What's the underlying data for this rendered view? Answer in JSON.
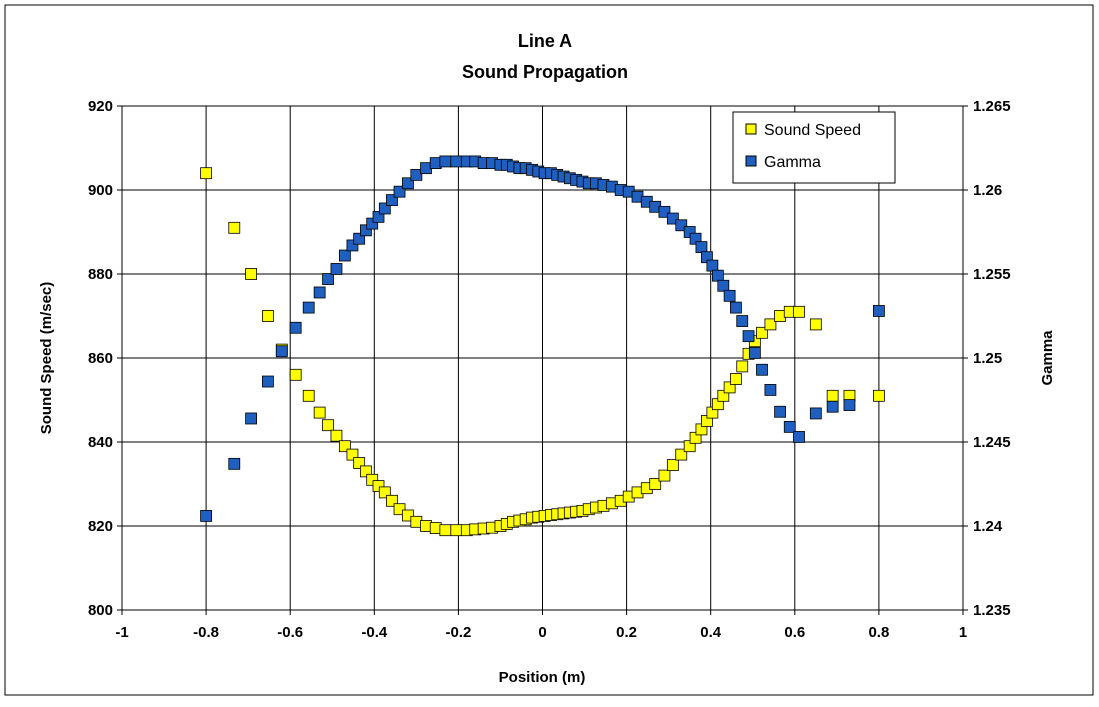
{
  "chart_data": {
    "type": "scatter",
    "title_lines": [
      "Line A",
      "Sound Propagation"
    ],
    "xlabel": "Position (m)",
    "ylabel": "Sound Speed (m/sec)",
    "y2label": "Gamma",
    "xlim": [
      -1,
      1
    ],
    "ylim": [
      800,
      920
    ],
    "y2lim": [
      1.235,
      1.265
    ],
    "x_ticks": [
      -1,
      -0.8,
      -0.6,
      -0.4,
      -0.2,
      0,
      0.2,
      0.4,
      0.6,
      0.8,
      1
    ],
    "x_tick_labels": [
      "-1",
      "-0.8",
      "-0.6",
      "-0.4",
      "-0.2",
      "0",
      "0.2",
      "0.4",
      "0.6",
      "0.8",
      "1"
    ],
    "y_ticks": [
      800,
      820,
      840,
      860,
      880,
      900,
      920
    ],
    "y_tick_labels": [
      "800",
      "820",
      "840",
      "860",
      "880",
      "900",
      "920"
    ],
    "y2_ticks": [
      1.235,
      1.24,
      1.245,
      1.25,
      1.255,
      1.26,
      1.265
    ],
    "y2_tick_labels": [
      "1.235",
      "1.24",
      "1.245",
      "1.25",
      "1.255",
      "1.26",
      "1.265"
    ],
    "grid": true,
    "legend_position": "top-right",
    "series": [
      {
        "name": "Sound Speed",
        "axis": "left",
        "color": "#ffff00",
        "x": [
          -0.8,
          -0.733,
          -0.693,
          -0.653,
          -0.62,
          -0.587,
          -0.556,
          -0.53,
          -0.51,
          -0.49,
          -0.47,
          -0.452,
          -0.436,
          -0.42,
          -0.405,
          -0.39,
          -0.375,
          -0.358,
          -0.34,
          -0.32,
          -0.3,
          -0.277,
          -0.254,
          -0.231,
          -0.205,
          -0.18,
          -0.16,
          -0.14,
          -0.12,
          -0.1,
          -0.085,
          -0.07,
          -0.055,
          -0.04,
          -0.025,
          -0.01,
          0.005,
          0.02,
          0.035,
          0.05,
          0.065,
          0.08,
          0.095,
          0.11,
          0.127,
          0.145,
          0.165,
          0.186,
          0.205,
          0.226,
          0.248,
          0.268,
          0.29,
          0.31,
          0.33,
          0.35,
          0.364,
          0.378,
          0.391,
          0.404,
          0.417,
          0.43,
          0.445,
          0.46,
          0.475,
          0.49,
          0.505,
          0.522,
          0.542,
          0.565,
          0.588,
          0.61,
          0.65,
          0.69,
          0.73,
          0.8
        ],
        "y": [
          904,
          891,
          880,
          870,
          862,
          856,
          851,
          847,
          844,
          841.5,
          839,
          837,
          835,
          833,
          831,
          829.5,
          828,
          826,
          824,
          822.5,
          821,
          820,
          819.5,
          819,
          819,
          819,
          819.2,
          819.4,
          819.6,
          820,
          820.5,
          821,
          821.3,
          821.6,
          822,
          822.2,
          822.4,
          822.6,
          822.8,
          823,
          823.2,
          823.4,
          823.6,
          824,
          824.4,
          824.8,
          825.4,
          826,
          827,
          828,
          829,
          830,
          832,
          834.5,
          837,
          839,
          841,
          843,
          845,
          847,
          849,
          851,
          853,
          855,
          858,
          861,
          864,
          866,
          868,
          870,
          871,
          871,
          868,
          851,
          851,
          851
        ]
      },
      {
        "name": "Gamma",
        "axis": "right",
        "color": "#1f5fbf",
        "x": [
          -0.8,
          -0.733,
          -0.693,
          -0.653,
          -0.62,
          -0.587,
          -0.556,
          -0.53,
          -0.51,
          -0.49,
          -0.47,
          -0.452,
          -0.436,
          -0.42,
          -0.405,
          -0.39,
          -0.375,
          -0.358,
          -0.34,
          -0.32,
          -0.3,
          -0.277,
          -0.254,
          -0.231,
          -0.205,
          -0.18,
          -0.16,
          -0.14,
          -0.12,
          -0.1,
          -0.085,
          -0.07,
          -0.055,
          -0.04,
          -0.025,
          -0.01,
          0.005,
          0.02,
          0.035,
          0.05,
          0.065,
          0.08,
          0.095,
          0.11,
          0.127,
          0.145,
          0.165,
          0.186,
          0.205,
          0.226,
          0.248,
          0.268,
          0.29,
          0.31,
          0.33,
          0.35,
          0.364,
          0.378,
          0.391,
          0.404,
          0.417,
          0.43,
          0.445,
          0.46,
          0.475,
          0.49,
          0.505,
          0.522,
          0.542,
          0.565,
          0.588,
          0.61,
          0.65,
          0.69,
          0.73,
          0.8
        ],
        "y": [
          1.2406,
          1.2437,
          1.2464,
          1.2486,
          1.2504,
          1.2518,
          1.253,
          1.2539,
          1.2547,
          1.2553,
          1.2561,
          1.2567,
          1.2571,
          1.2576,
          1.258,
          1.2584,
          1.2589,
          1.2594,
          1.2599,
          1.2604,
          1.2609,
          1.2613,
          1.2616,
          1.2617,
          1.2617,
          1.2617,
          1.2617,
          1.2616,
          1.2616,
          1.2615,
          1.2615,
          1.2614,
          1.2613,
          1.2613,
          1.2612,
          1.2611,
          1.261,
          1.261,
          1.2609,
          1.2608,
          1.2607,
          1.2606,
          1.2605,
          1.2604,
          1.2604,
          1.2603,
          1.2602,
          1.26,
          1.2599,
          1.2596,
          1.2593,
          1.259,
          1.2587,
          1.2583,
          1.2579,
          1.2575,
          1.2571,
          1.2566,
          1.256,
          1.2555,
          1.2549,
          1.2543,
          1.2537,
          1.253,
          1.2522,
          1.2513,
          1.2503,
          1.2493,
          1.2481,
          1.2468,
          1.2459,
          1.2453,
          1.2467,
          1.2471,
          1.2472,
          1.2528
        ]
      }
    ]
  }
}
